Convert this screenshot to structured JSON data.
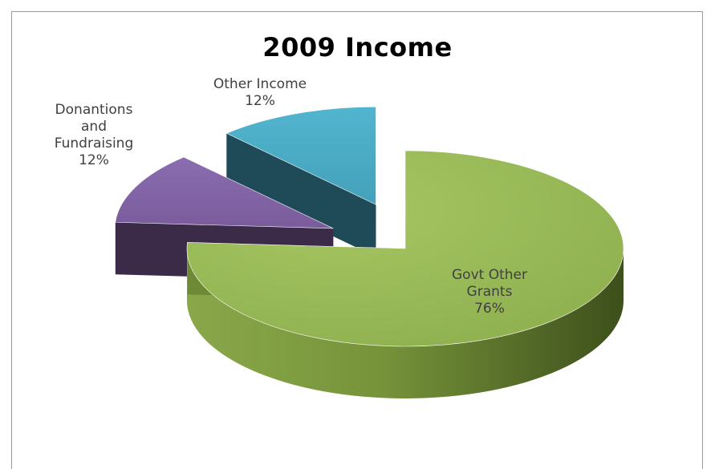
{
  "chart_data": {
    "type": "pie",
    "title": "2009 Income",
    "slices": [
      {
        "name": "Govt Other Grants",
        "lines": [
          "Govt Other",
          "Grants",
          "76%"
        ],
        "value": 76,
        "color": "#9bbb59",
        "side": "#5e7a2a",
        "exploded": false
      },
      {
        "name": "Donantions and Fundraising",
        "lines": [
          "Donantions",
          "and",
          "Fundraising",
          "12%"
        ],
        "value": 12,
        "color": "#8064a2",
        "side": "#3b2a48",
        "exploded": true
      },
      {
        "name": "Other Income",
        "lines": [
          "Other Income",
          "12%"
        ],
        "value": 12,
        "color": "#4bacc6",
        "side": "#1f4a57",
        "exploded": true
      }
    ]
  }
}
